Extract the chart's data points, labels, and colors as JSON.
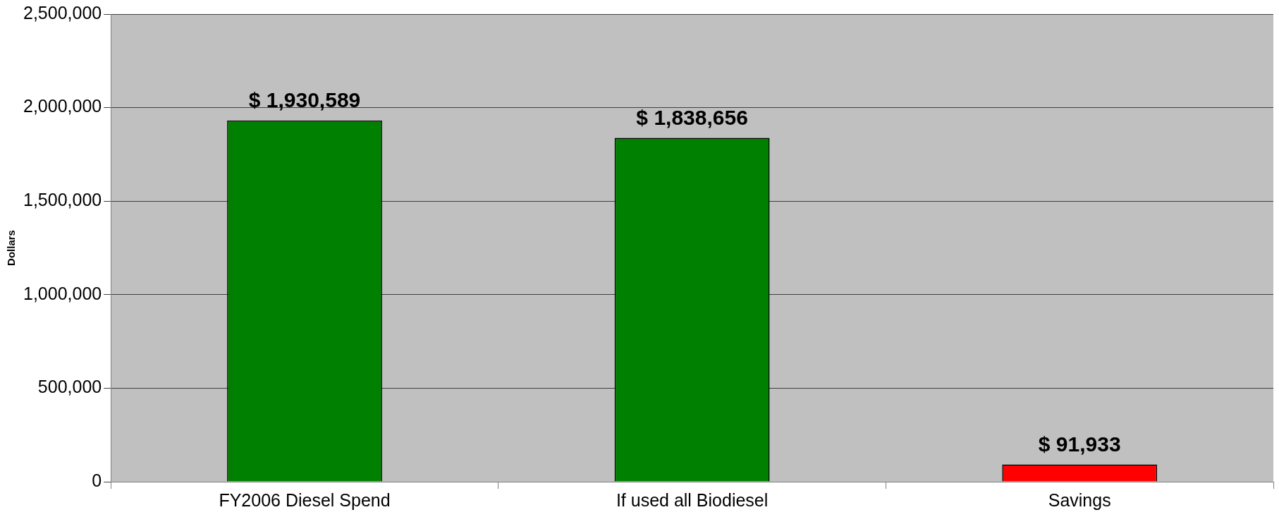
{
  "chart_data": {
    "type": "bar",
    "ylabel": "Dollars",
    "categories": [
      "FY2006 Diesel Spend",
      "If used all Biodiesel",
      "Savings"
    ],
    "values": [
      1930589,
      1838656,
      91933
    ],
    "colors": [
      "#008000",
      "#008000",
      "#ff0000"
    ],
    "value_labels": [
      "$ 1,930,589",
      "$ 1,838,656",
      "$ 91,933"
    ],
    "ylim": [
      0,
      2500000
    ],
    "yticks": [
      {
        "value": 0,
        "label": "0"
      },
      {
        "value": 500000,
        "label": "500,000"
      },
      {
        "value": 1000000,
        "label": "1,000,000"
      },
      {
        "value": 1500000,
        "label": "1,500,000"
      },
      {
        "value": 2000000,
        "label": "2,000,000"
      },
      {
        "value": 2500000,
        "label": "2,500,000"
      }
    ],
    "grid": "y",
    "legend": false
  }
}
